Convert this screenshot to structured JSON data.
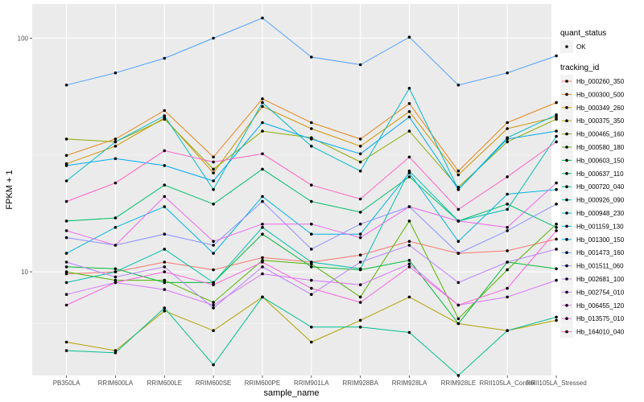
{
  "chart_data": {
    "type": "line",
    "xlabel": "sample_name",
    "ylabel": "FPKM + 1",
    "y_scale": "log10",
    "ylim": [
      3.6,
      140
    ],
    "y_ticks": [
      10,
      100
    ],
    "y_tick_labels": [
      "10",
      "100"
    ],
    "grid": true,
    "legend_placement": "right",
    "categories": [
      "PB350LA",
      "RRIM600LA",
      "RRIM600LE",
      "RRIM600SE",
      "RRIM600PE",
      "RRIM901LA",
      "RRIM928BA",
      "RRIM928LA",
      "RRIM928LE",
      "RRII105LA_Control",
      "RRII105LA_Stressed"
    ],
    "shape_legend": {
      "title": "quant_status",
      "entries": [
        "OK"
      ]
    },
    "series_legend_title": "tracking_id",
    "series": [
      {
        "name": "Hb_000260_350",
        "color": "#F8766D",
        "values": [
          9.8,
          10.0,
          11.0,
          10.2,
          11.5,
          11.0,
          11.8,
          13.5,
          12.0,
          12.3,
          13.8
        ]
      },
      {
        "name": "Hb_000300_500",
        "color": "#E7851E",
        "values": [
          31.5,
          37.0,
          49.0,
          31.0,
          55.0,
          43.5,
          37.0,
          52.5,
          27.0,
          43.5,
          53.0
        ]
      },
      {
        "name": "Hb_000349_260",
        "color": "#D09400",
        "values": [
          29.0,
          34.5,
          45.5,
          26.5,
          51.0,
          41.0,
          34.5,
          48.5,
          26.0,
          41.0,
          46.0
        ]
      },
      {
        "name": "Hb_000375_350",
        "color": "#B2A100",
        "values": [
          5.0,
          4.6,
          6.8,
          5.6,
          7.8,
          5.0,
          6.2,
          7.8,
          6.0,
          5.6,
          6.2
        ]
      },
      {
        "name": "Hb_000465_160",
        "color": "#8BAB00",
        "values": [
          37.0,
          36.0,
          45.0,
          27.5,
          40.0,
          37.5,
          29.5,
          40.0,
          23.0,
          36.0,
          45.0
        ]
      },
      {
        "name": "Hb_000580_180",
        "color": "#55B400",
        "values": [
          10.0,
          9.2,
          9.2,
          7.4,
          11.2,
          10.8,
          7.8,
          16.5,
          6.3,
          10.2,
          16.0
        ]
      },
      {
        "name": "Hb_000603_150",
        "color": "#00BA38",
        "values": [
          10.5,
          10.3,
          9.0,
          9.0,
          14.5,
          10.5,
          10.2,
          11.2,
          6.0,
          11.0,
          10.3
        ]
      },
      {
        "name": "Hb_000637_110",
        "color": "#00BE6C",
        "values": [
          16.5,
          17.0,
          23.5,
          19.5,
          27.5,
          20.0,
          18.0,
          25.5,
          16.5,
          19.5,
          15.5
        ]
      },
      {
        "name": "Hb_000720_040",
        "color": "#00C08E",
        "values": [
          4.6,
          4.5,
          7.0,
          4.0,
          7.8,
          5.8,
          5.8,
          5.5,
          3.6,
          5.6,
          6.4
        ]
      },
      {
        "name": "Hb_000926_090",
        "color": "#00C0AC",
        "values": [
          9.0,
          10.0,
          12.5,
          9.0,
          15.5,
          11.0,
          10.3,
          27.0,
          16.5,
          18.5,
          38.0
        ]
      },
      {
        "name": "Hb_000948_230",
        "color": "#00BDC7",
        "values": [
          24.5,
          36.0,
          46.5,
          22.5,
          53.0,
          34.5,
          27.0,
          61.0,
          22.5,
          37.5,
          47.0
        ]
      },
      {
        "name": "Hb_001159_130",
        "color": "#00B6DF",
        "values": [
          12.0,
          15.5,
          19.0,
          12.0,
          21.0,
          14.5,
          14.5,
          26.5,
          13.5,
          21.5,
          22.5
        ]
      },
      {
        "name": "Hb_001300_150",
        "color": "#00ABF3",
        "values": [
          28.5,
          30.5,
          28.5,
          24.5,
          43.5,
          37.0,
          32.0,
          46.0,
          22.5,
          37.0,
          40.0
        ]
      },
      {
        "name": "Hb_001473_160",
        "color": "#4B9FFF",
        "values": [
          63.0,
          71.0,
          82.0,
          100.0,
          122.0,
          83.0,
          77.0,
          101.0,
          63.0,
          71.0,
          84.0
        ]
      },
      {
        "name": "Hb_001511_060",
        "color": "#8F91FF",
        "values": [
          14.0,
          13.0,
          14.5,
          13.0,
          20.0,
          12.5,
          16.0,
          19.0,
          12.0,
          15.0,
          19.5
        ]
      },
      {
        "name": "Hb_002681_100",
        "color": "#B983FF",
        "values": [
          11.0,
          9.5,
          10.5,
          7.0,
          10.5,
          8.0,
          11.0,
          13.0,
          9.0,
          11.0,
          12.5
        ]
      },
      {
        "name": "Hb_002754_010",
        "color": "#D874FD",
        "values": [
          8.0,
          9.0,
          8.4,
          7.2,
          9.8,
          9.2,
          8.8,
          10.8,
          7.2,
          7.8,
          9.2
        ]
      },
      {
        "name": "Hb_006455_120",
        "color": "#EC69EF",
        "values": [
          15.0,
          13.0,
          21.0,
          13.5,
          16.0,
          16.0,
          14.0,
          19.0,
          16.5,
          15.5,
          24.0
        ]
      },
      {
        "name": "Hb_013575_010",
        "color": "#F963DB",
        "values": [
          7.2,
          9.0,
          10.0,
          8.8,
          11.0,
          8.5,
          7.4,
          10.5,
          7.2,
          8.5,
          15.0
        ]
      },
      {
        "name": "Hb_164010_040",
        "color": "#FF61C3",
        "values": [
          20.0,
          24.0,
          33.0,
          29.5,
          32.0,
          23.5,
          20.5,
          31.0,
          18.5,
          25.5,
          36.0
        ]
      }
    ]
  }
}
